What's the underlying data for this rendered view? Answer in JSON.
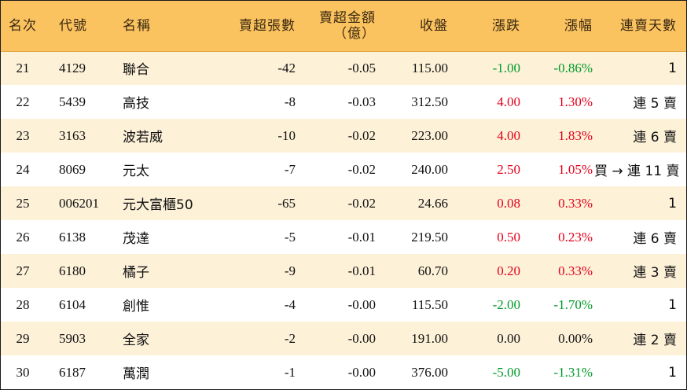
{
  "headers": {
    "rank": "名次",
    "code": "代號",
    "name": "名稱",
    "net_sell_volume": "賣超張數",
    "net_sell_amount_line1": "賣超金額",
    "net_sell_amount_line2": "（億）",
    "close": "收盤",
    "change": "漲跌",
    "change_pct": "漲幅",
    "consecutive_sell_days": "連賣天數"
  },
  "colors": {
    "header_bg": "#fbc260",
    "stripe_bg": "#fdf1d8",
    "up": "#e3001b",
    "down": "#009a2a"
  },
  "rows": [
    {
      "rank": "21",
      "code": "4129",
      "name": "聯合",
      "volume": "-42",
      "amount": "-0.05",
      "close": "115.00",
      "change": "-1.00",
      "pct": "-0.86%",
      "trend": "down",
      "days": "1"
    },
    {
      "rank": "22",
      "code": "5439",
      "name": "高技",
      "volume": "-8",
      "amount": "-0.03",
      "close": "312.50",
      "change": "4.00",
      "pct": "1.30%",
      "trend": "up",
      "days": "連 5 賣"
    },
    {
      "rank": "23",
      "code": "3163",
      "name": "波若威",
      "volume": "-10",
      "amount": "-0.02",
      "close": "223.00",
      "change": "4.00",
      "pct": "1.83%",
      "trend": "up",
      "days": "連 6 賣"
    },
    {
      "rank": "24",
      "code": "8069",
      "name": "元太",
      "volume": "-7",
      "amount": "-0.02",
      "close": "240.00",
      "change": "2.50",
      "pct": "1.05%",
      "trend": "up",
      "days": "買 → 連 11 賣"
    },
    {
      "rank": "25",
      "code": "006201",
      "name": "元大富櫃50",
      "volume": "-65",
      "amount": "-0.02",
      "close": "24.66",
      "change": "0.08",
      "pct": "0.33%",
      "trend": "up",
      "days": "1"
    },
    {
      "rank": "26",
      "code": "6138",
      "name": "茂達",
      "volume": "-5",
      "amount": "-0.01",
      "close": "219.50",
      "change": "0.50",
      "pct": "0.23%",
      "trend": "up",
      "days": "連 6 賣"
    },
    {
      "rank": "27",
      "code": "6180",
      "name": "橘子",
      "volume": "-9",
      "amount": "-0.01",
      "close": "60.70",
      "change": "0.20",
      "pct": "0.33%",
      "trend": "up",
      "days": "連 3 賣"
    },
    {
      "rank": "28",
      "code": "6104",
      "name": "創惟",
      "volume": "-4",
      "amount": "-0.00",
      "close": "115.50",
      "change": "-2.00",
      "pct": "-1.70%",
      "trend": "down",
      "days": "1"
    },
    {
      "rank": "29",
      "code": "5903",
      "name": "全家",
      "volume": "-2",
      "amount": "-0.00",
      "close": "191.00",
      "change": "0.00",
      "pct": "0.00%",
      "trend": "flat",
      "days": "連 2 賣"
    },
    {
      "rank": "30",
      "code": "6187",
      "name": "萬潤",
      "volume": "-1",
      "amount": "-0.00",
      "close": "376.00",
      "change": "-5.00",
      "pct": "-1.31%",
      "trend": "down",
      "days": "1"
    }
  ]
}
